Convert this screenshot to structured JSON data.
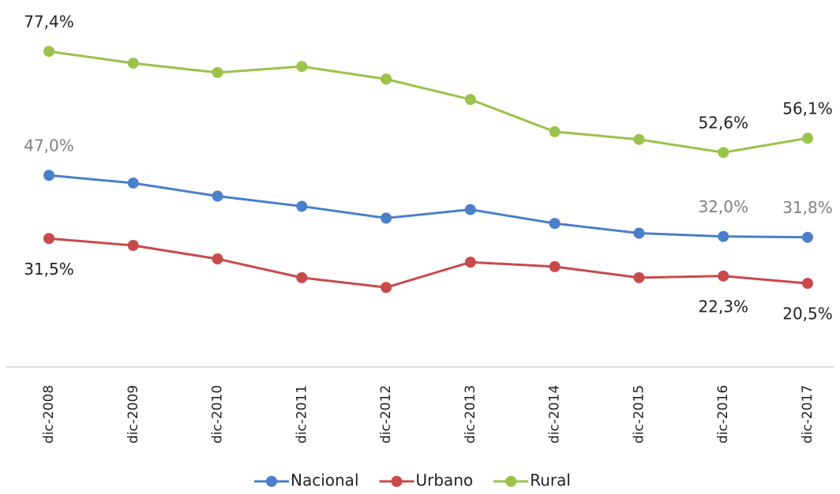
{
  "chart_data": {
    "type": "line",
    "categories": [
      "dic-2008",
      "dic-2009",
      "dic-2010",
      "dic-2011",
      "dic-2012",
      "dic-2013",
      "dic-2014",
      "dic-2015",
      "dic-2016",
      "dic-2017"
    ],
    "series": [
      {
        "name": "Nacional",
        "color": "#4a7fc9",
        "label_color": "#808080",
        "label_side": "above",
        "values": [
          47.0,
          45.1,
          41.9,
          39.4,
          36.5,
          38.6,
          35.2,
          32.8,
          32.0,
          31.8
        ],
        "value_labels": [
          "47,0%",
          null,
          null,
          null,
          null,
          null,
          null,
          null,
          "32,0%",
          "31,8%"
        ]
      },
      {
        "name": "Urbano",
        "color": "#c94a4a",
        "label_color": "#222222",
        "label_side": "below",
        "values": [
          31.5,
          29.8,
          26.5,
          21.9,
          19.5,
          25.7,
          24.6,
          21.9,
          22.3,
          20.5
        ],
        "value_labels": [
          "31,5%",
          null,
          null,
          null,
          null,
          null,
          null,
          null,
          "22,3%",
          "20,5%"
        ]
      },
      {
        "name": "Rural",
        "color": "#9bc24a",
        "label_color": "#222222",
        "label_side": "above",
        "values": [
          77.4,
          74.5,
          72.2,
          73.7,
          70.6,
          65.6,
          57.7,
          55.8,
          52.6,
          56.1
        ],
        "value_labels": [
          "77,4%",
          null,
          null,
          null,
          null,
          null,
          null,
          null,
          "52,6%",
          "56,1%"
        ]
      }
    ],
    "ylim": [
      0,
      90
    ],
    "legend": "bottom"
  }
}
